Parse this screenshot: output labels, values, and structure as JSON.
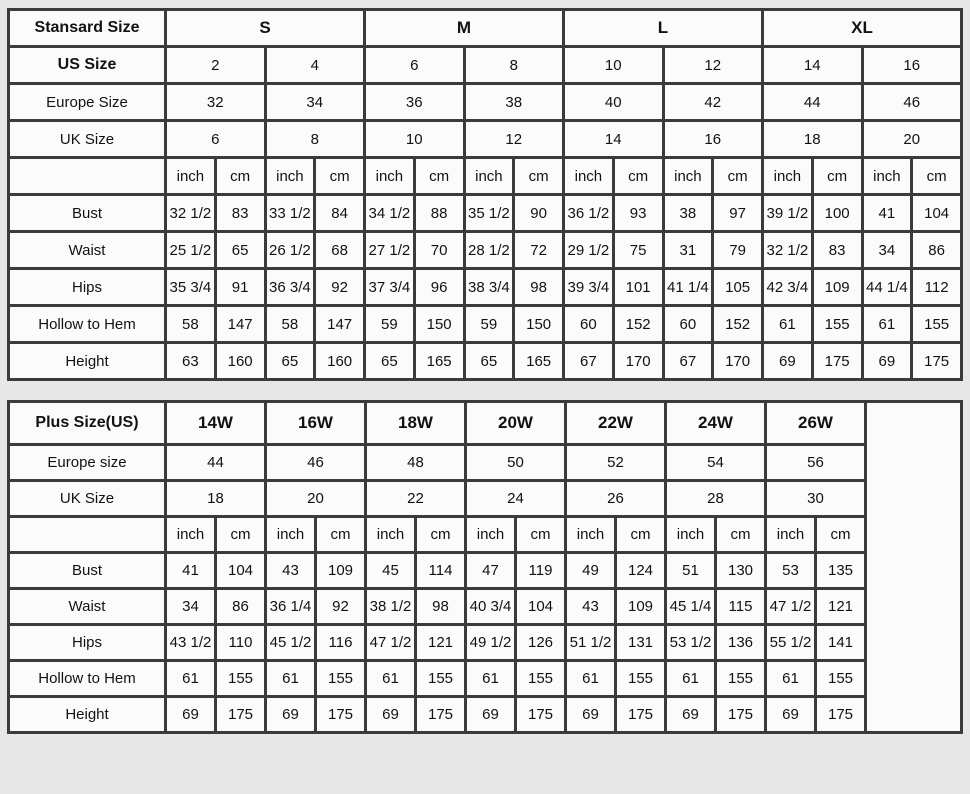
{
  "colors": {
    "page_bg": "#e7e7e7",
    "table_border": "#3b3b3b",
    "cell_bg": "#fbfbfb",
    "text": "#121212"
  },
  "standard_table": {
    "corner_label": "Stansard Size",
    "size_groups": [
      "S",
      "M",
      "L",
      "XL"
    ],
    "header_rows": [
      {
        "label": "US Size",
        "values": [
          "2",
          "4",
          "6",
          "8",
          "10",
          "12",
          "14",
          "16"
        ]
      },
      {
        "label": "Europe Size",
        "values": [
          "32",
          "34",
          "36",
          "38",
          "40",
          "42",
          "44",
          "46"
        ]
      },
      {
        "label": "UK Size",
        "values": [
          "6",
          "8",
          "10",
          "12",
          "14",
          "16",
          "18",
          "20"
        ]
      }
    ],
    "unit_labels": [
      "inch",
      "cm"
    ],
    "measure_rows": [
      {
        "label": "Bust",
        "values": [
          "32 1/2",
          "83",
          "33 1/2",
          "84",
          "34 1/2",
          "88",
          "35 1/2",
          "90",
          "36 1/2",
          "93",
          "38",
          "97",
          "39 1/2",
          "100",
          "41",
          "104"
        ]
      },
      {
        "label": "Waist",
        "values": [
          "25 1/2",
          "65",
          "26 1/2",
          "68",
          "27 1/2",
          "70",
          "28 1/2",
          "72",
          "29 1/2",
          "75",
          "31",
          "79",
          "32 1/2",
          "83",
          "34",
          "86"
        ]
      },
      {
        "label": "Hips",
        "values": [
          "35 3/4",
          "91",
          "36 3/4",
          "92",
          "37 3/4",
          "96",
          "38 3/4",
          "98",
          "39 3/4",
          "101",
          "41 1/4",
          "105",
          "42 3/4",
          "109",
          "44 1/4",
          "112"
        ]
      },
      {
        "label": "Hollow to Hem",
        "values": [
          "58",
          "147",
          "58",
          "147",
          "59",
          "150",
          "59",
          "150",
          "60",
          "152",
          "60",
          "152",
          "61",
          "155",
          "61",
          "155"
        ]
      },
      {
        "label": "Height",
        "values": [
          "63",
          "160",
          "65",
          "160",
          "65",
          "165",
          "65",
          "165",
          "67",
          "170",
          "67",
          "170",
          "69",
          "175",
          "69",
          "175"
        ]
      }
    ]
  },
  "plus_table": {
    "corner_label": "Plus Size(US)",
    "size_groups": [
      "14W",
      "16W",
      "18W",
      "20W",
      "22W",
      "24W",
      "26W"
    ],
    "header_rows": [
      {
        "label": "Europe size",
        "values": [
          "44",
          "46",
          "48",
          "50",
          "52",
          "54",
          "56"
        ]
      },
      {
        "label": "UK Size",
        "values": [
          "18",
          "20",
          "22",
          "24",
          "26",
          "28",
          "30"
        ]
      }
    ],
    "unit_labels": [
      "inch",
      "cm"
    ],
    "measure_rows": [
      {
        "label": "Bust",
        "values": [
          "41",
          "104",
          "43",
          "109",
          "45",
          "114",
          "47",
          "119",
          "49",
          "124",
          "51",
          "130",
          "53",
          "135"
        ]
      },
      {
        "label": "Waist",
        "values": [
          "34",
          "86",
          "36 1/4",
          "92",
          "38 1/2",
          "98",
          "40 3/4",
          "104",
          "43",
          "109",
          "45 1/4",
          "115",
          "47 1/2",
          "121"
        ]
      },
      {
        "label": "Hips",
        "values": [
          "43 1/2",
          "110",
          "45 1/2",
          "116",
          "47 1/2",
          "121",
          "49 1/2",
          "126",
          "51 1/2",
          "131",
          "53 1/2",
          "136",
          "55 1/2",
          "141"
        ]
      },
      {
        "label": "Hollow to Hem",
        "values": [
          "61",
          "155",
          "61",
          "155",
          "61",
          "155",
          "61",
          "155",
          "61",
          "155",
          "61",
          "155",
          "61",
          "155"
        ]
      },
      {
        "label": "Height",
        "values": [
          "69",
          "175",
          "69",
          "175",
          "69",
          "175",
          "69",
          "175",
          "69",
          "175",
          "69",
          "175",
          "69",
          "175"
        ]
      }
    ]
  }
}
